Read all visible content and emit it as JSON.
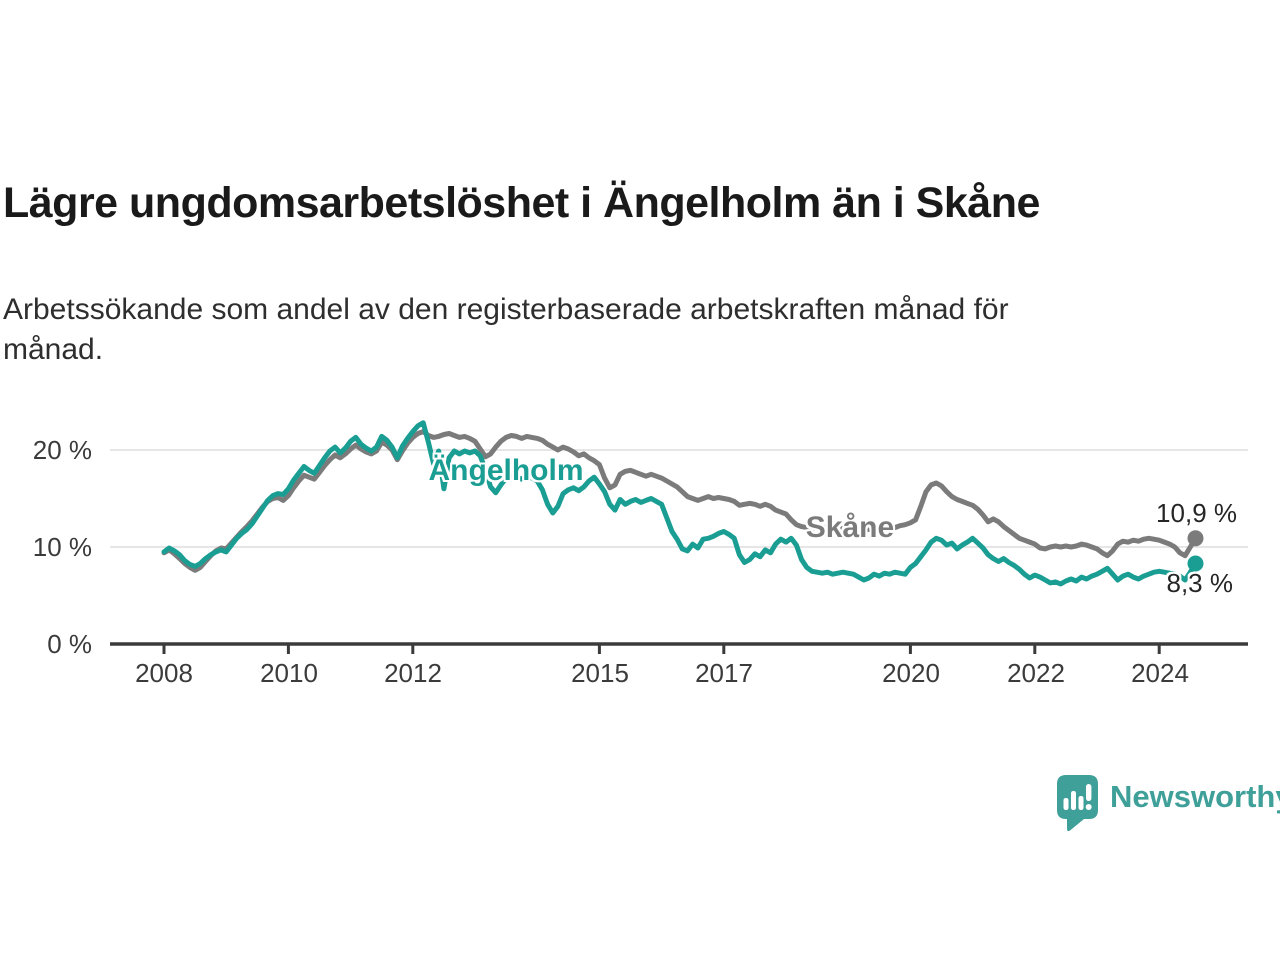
{
  "header": {
    "title": "Lägre ungdomsarbetslöshet i Ängelholm än i Skåne",
    "subtitle_line1": "Arbetssökande som andel av den registerbaserade arbetskraften månad för",
    "subtitle_line2": "månad."
  },
  "logo": {
    "text": "Newsworthy",
    "color": "#3f9f99"
  },
  "colors": {
    "angelholm": "#1a9e94",
    "skane": "#7b7b7b",
    "grid": "#dedede",
    "axis": "#3b3b3b",
    "title_text": "#1a1a1a",
    "annotation_text": "#262626",
    "background": "#ffffff"
  },
  "chart_data": {
    "type": "line",
    "title": "Lägre ungdomsarbetslöshet i Ängelholm än i Skåne",
    "subtitle": "Arbetssökande som andel av den registerbaserade arbetskraften månad för månad.",
    "unit": "%",
    "frequency": "monthly",
    "x_range": {
      "start_year": 2008,
      "start_month": 1,
      "end_year": 2024,
      "end_month": 8
    },
    "ylim": [
      0,
      24
    ],
    "grid": "horizontal-light",
    "legend": "inline-series-labels",
    "yticks": [
      {
        "value": 20,
        "label": "20 %"
      },
      {
        "value": 10,
        "label": "10 %"
      },
      {
        "value": 0,
        "label": "0 %"
      }
    ],
    "xticks": [
      {
        "value": 2008,
        "label": "2008"
      },
      {
        "value": 2010,
        "label": "2010"
      },
      {
        "value": 2012,
        "label": "2012"
      },
      {
        "value": 2015,
        "label": "2015"
      },
      {
        "value": 2017,
        "label": "2017"
      },
      {
        "value": 2020,
        "label": "2020"
      },
      {
        "value": 2022,
        "label": "2022"
      },
      {
        "value": 2024,
        "label": "2024"
      }
    ],
    "series": [
      {
        "name": "Skåne",
        "color": "#7b7b7b",
        "end_label": "10,9 %",
        "end_value": 10.9,
        "values": [
          9.4,
          9.7,
          9.3,
          8.8,
          8.3,
          7.9,
          7.6,
          7.9,
          8.5,
          9.1,
          9.6,
          9.9,
          9.8,
          10.4,
          11.0,
          11.6,
          12.1,
          12.7,
          13.4,
          14.1,
          14.7,
          15.0,
          15.1,
          14.8,
          15.3,
          16.1,
          16.8,
          17.4,
          17.2,
          17.0,
          17.7,
          18.4,
          19.0,
          19.5,
          19.2,
          19.6,
          20.1,
          20.5,
          20.1,
          19.8,
          19.6,
          19.9,
          20.8,
          20.5,
          20.0,
          19.0,
          19.9,
          20.7,
          21.3,
          21.7,
          21.9,
          21.5,
          21.3,
          21.4,
          21.6,
          21.7,
          21.5,
          21.3,
          21.4,
          21.2,
          20.9,
          20.1,
          19.3,
          19.6,
          20.3,
          20.9,
          21.3,
          21.5,
          21.4,
          21.2,
          21.4,
          21.3,
          21.2,
          21.0,
          20.6,
          20.3,
          20.0,
          20.3,
          20.1,
          19.8,
          19.4,
          19.6,
          19.2,
          18.9,
          18.5,
          17.1,
          16.1,
          16.4,
          17.5,
          17.8,
          17.9,
          17.7,
          17.5,
          17.3,
          17.5,
          17.3,
          17.1,
          16.8,
          16.5,
          16.2,
          15.7,
          15.2,
          15.0,
          14.8,
          15.0,
          15.2,
          15.0,
          15.1,
          15.0,
          14.9,
          14.7,
          14.3,
          14.4,
          14.5,
          14.4,
          14.2,
          14.4,
          14.2,
          13.8,
          13.6,
          13.4,
          12.8,
          12.3,
          12.1,
          12.0,
          11.9,
          12.0,
          12.1,
          11.9,
          12.0,
          12.1,
          11.9,
          12.0,
          11.9,
          11.8,
          11.9,
          11.8,
          11.9,
          12.0,
          11.9,
          12.1,
          12.0,
          12.2,
          12.3,
          12.5,
          12.8,
          14.2,
          15.7,
          16.4,
          16.6,
          16.3,
          15.7,
          15.2,
          14.9,
          14.7,
          14.5,
          14.3,
          13.9,
          13.3,
          12.6,
          12.9,
          12.6,
          12.1,
          11.7,
          11.3,
          10.9,
          10.7,
          10.5,
          10.3,
          9.9,
          9.8,
          10.0,
          10.1,
          10.0,
          10.1,
          10.0,
          10.1,
          10.3,
          10.2,
          10.0,
          9.8,
          9.4,
          9.1,
          9.6,
          10.3,
          10.6,
          10.5,
          10.7,
          10.6,
          10.8,
          10.9,
          10.8,
          10.7,
          10.5,
          10.3,
          10.0,
          9.4,
          9.1,
          10.0,
          10.9
        ]
      },
      {
        "name": "Ängelholm",
        "color": "#1a9e94",
        "end_label": "8,3 %",
        "end_value": 8.3,
        "values": [
          9.5,
          9.9,
          9.6,
          9.2,
          8.6,
          8.2,
          8.0,
          8.3,
          8.8,
          9.2,
          9.5,
          9.7,
          9.5,
          10.2,
          10.9,
          11.4,
          11.8,
          12.4,
          13.2,
          14.0,
          14.8,
          15.3,
          15.5,
          15.4,
          16.0,
          16.9,
          17.6,
          18.3,
          17.9,
          17.6,
          18.4,
          19.2,
          19.9,
          20.3,
          19.7,
          20.2,
          20.9,
          21.3,
          20.6,
          20.2,
          19.9,
          20.3,
          21.4,
          21.0,
          20.3,
          19.2,
          20.4,
          21.2,
          21.9,
          22.5,
          22.8,
          20.8,
          18.6,
          19.9,
          16.0,
          19.2,
          19.9,
          19.6,
          19.9,
          19.7,
          19.9,
          19.4,
          18.0,
          16.2,
          15.6,
          16.4,
          17.1,
          17.4,
          17.2,
          17.0,
          17.3,
          17.1,
          16.8,
          15.9,
          14.4,
          13.5,
          14.2,
          15.5,
          15.9,
          16.1,
          15.8,
          16.2,
          16.8,
          17.2,
          16.5,
          15.7,
          14.4,
          13.8,
          14.9,
          14.4,
          14.7,
          14.9,
          14.6,
          14.8,
          15.0,
          14.7,
          14.4,
          13.0,
          11.6,
          10.8,
          9.8,
          9.6,
          10.3,
          9.9,
          10.8,
          10.9,
          11.1,
          11.4,
          11.6,
          11.3,
          10.9,
          9.2,
          8.4,
          8.7,
          9.3,
          9.0,
          9.7,
          9.4,
          10.3,
          10.8,
          10.5,
          10.9,
          10.2,
          8.7,
          7.9,
          7.5,
          7.4,
          7.3,
          7.4,
          7.2,
          7.3,
          7.4,
          7.3,
          7.2,
          6.9,
          6.6,
          6.8,
          7.2,
          7.0,
          7.3,
          7.2,
          7.4,
          7.3,
          7.2,
          7.9,
          8.3,
          9.0,
          9.7,
          10.5,
          10.9,
          10.7,
          10.2,
          10.4,
          9.8,
          10.2,
          10.5,
          10.9,
          10.4,
          9.9,
          9.2,
          8.8,
          8.5,
          8.8,
          8.4,
          8.1,
          7.7,
          7.2,
          6.8,
          7.1,
          6.9,
          6.6,
          6.3,
          6.4,
          6.2,
          6.5,
          6.7,
          6.5,
          6.9,
          6.7,
          7.0,
          7.2,
          7.5,
          7.8,
          7.2,
          6.6,
          7.0,
          7.2,
          6.9,
          6.7,
          7.0,
          7.2,
          7.4,
          7.5,
          7.4,
          7.3,
          7.2,
          7.0,
          6.6,
          7.4,
          8.3
        ]
      }
    ]
  }
}
